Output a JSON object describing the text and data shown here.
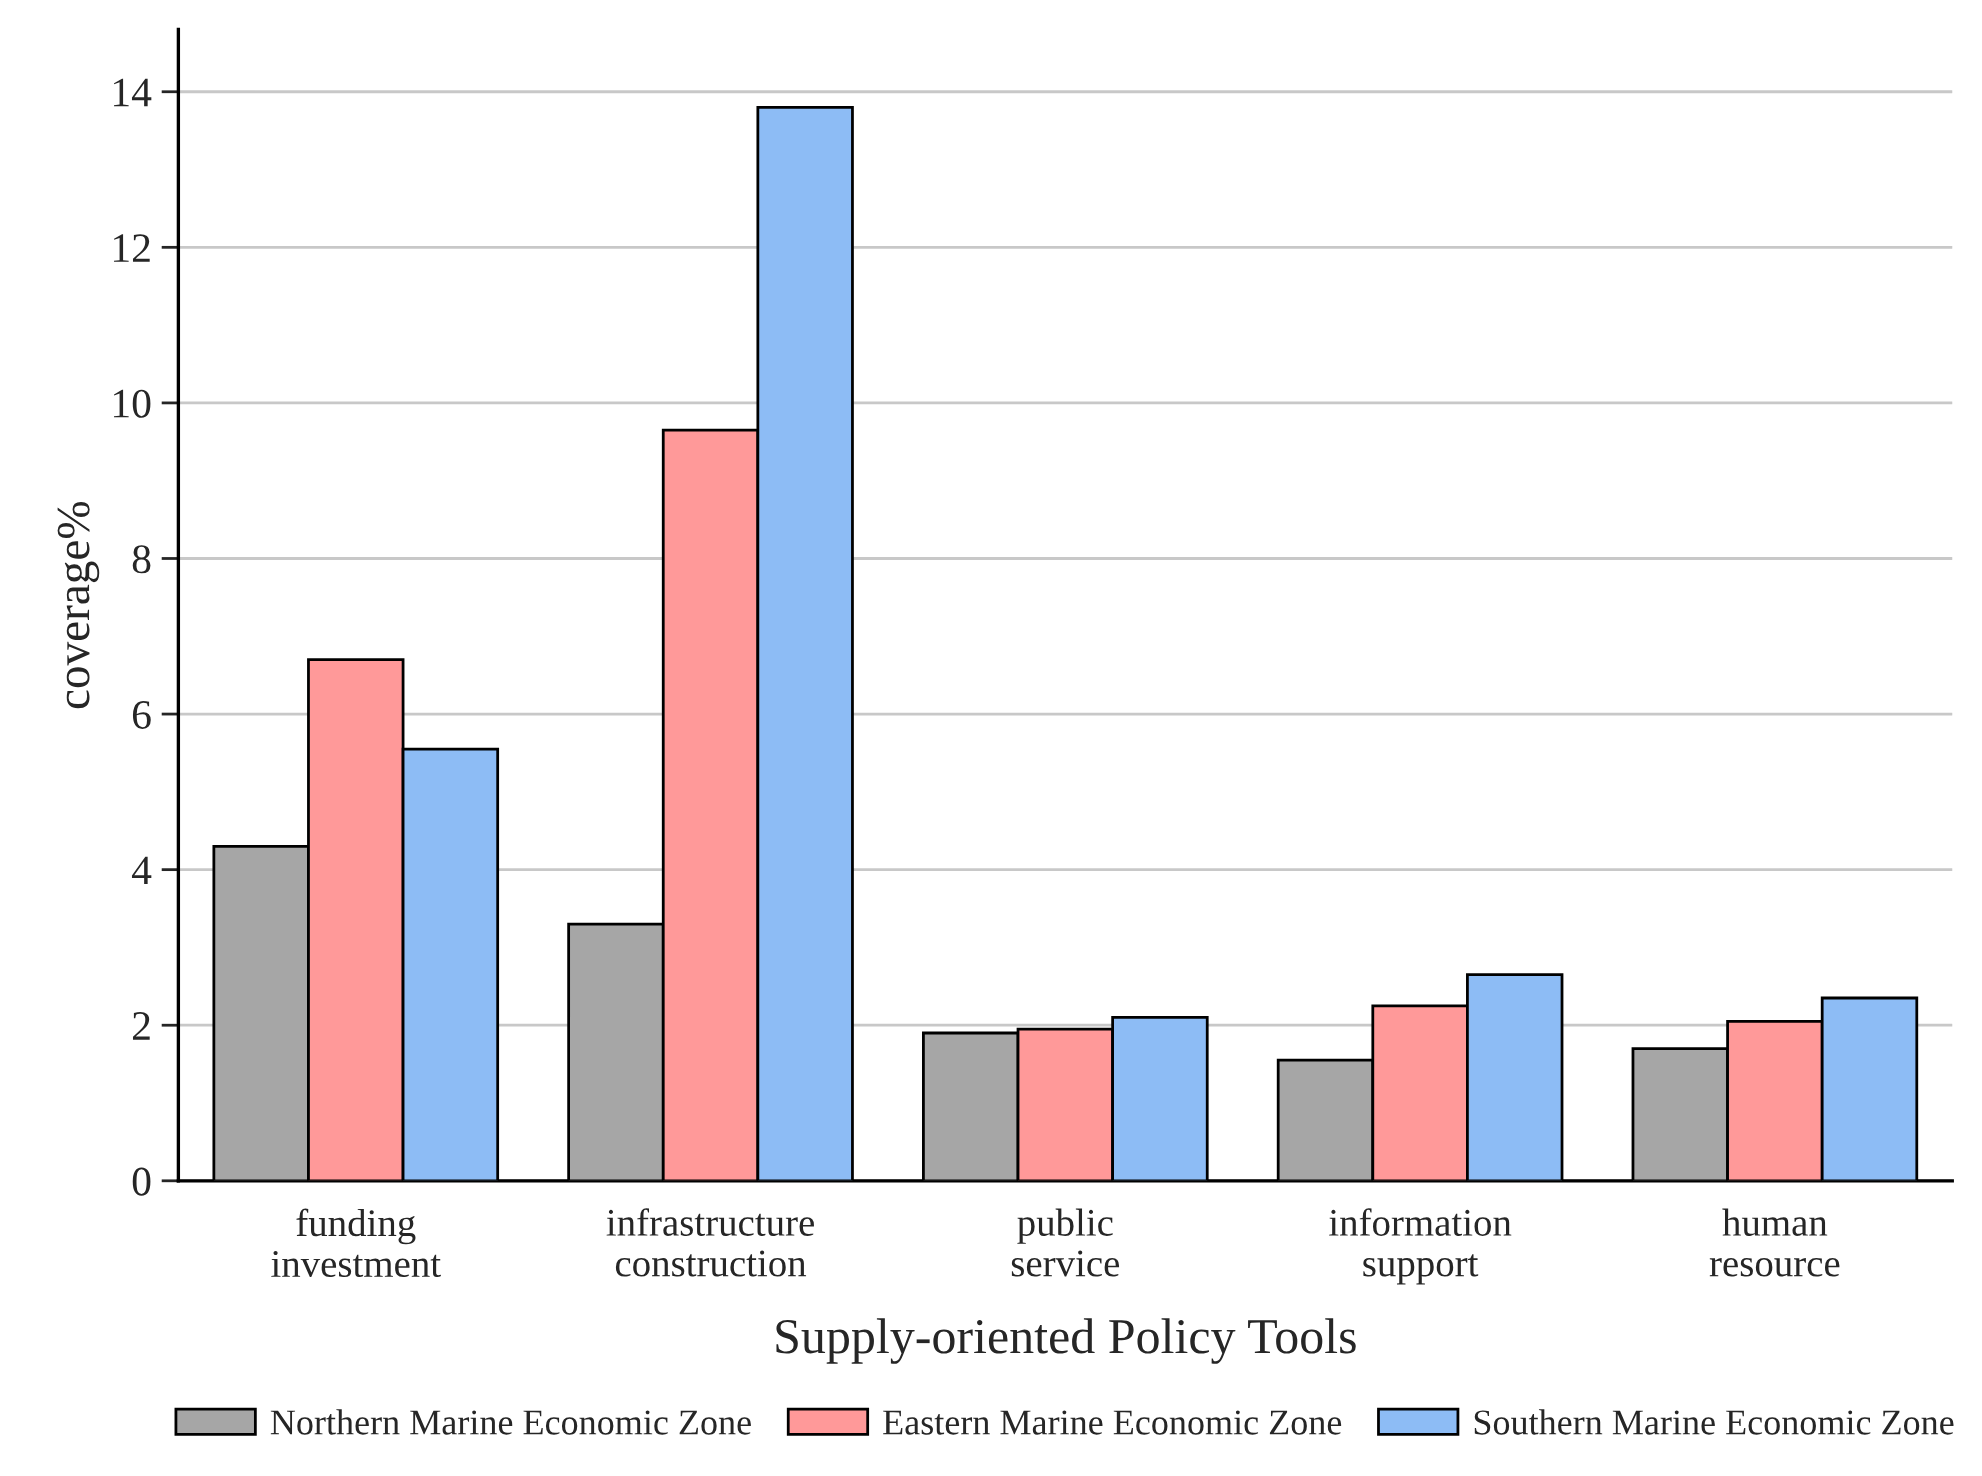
{
  "chart_data": {
    "type": "bar",
    "xlabel": "Supply-oriented Policy Tools",
    "ylabel": "coverage%",
    "categories": [
      "funding\ninvestment",
      "infrastructure\nconstruction",
      "public\nservice",
      "information\nsupport",
      "human\nresource"
    ],
    "series": [
      {
        "name": "Northern Marine Economic Zone",
        "color": "#a6a6a6",
        "values": [
          4.3,
          3.3,
          1.9,
          1.55,
          1.7
        ]
      },
      {
        "name": "Eastern Marine Economic Zone",
        "color": "#ff9999",
        "values": [
          6.7,
          9.65,
          1.95,
          2.25,
          2.05
        ]
      },
      {
        "name": "Southern Marine Economic Zone",
        "color": "#8dbcf5",
        "values": [
          5.55,
          13.8,
          2.1,
          2.65,
          2.35
        ]
      }
    ],
    "ylim": [
      0,
      14.8
    ],
    "yticks": [
      0,
      2,
      4,
      6,
      8,
      10,
      12,
      14
    ],
    "grid": "y",
    "legend": "bottom"
  }
}
